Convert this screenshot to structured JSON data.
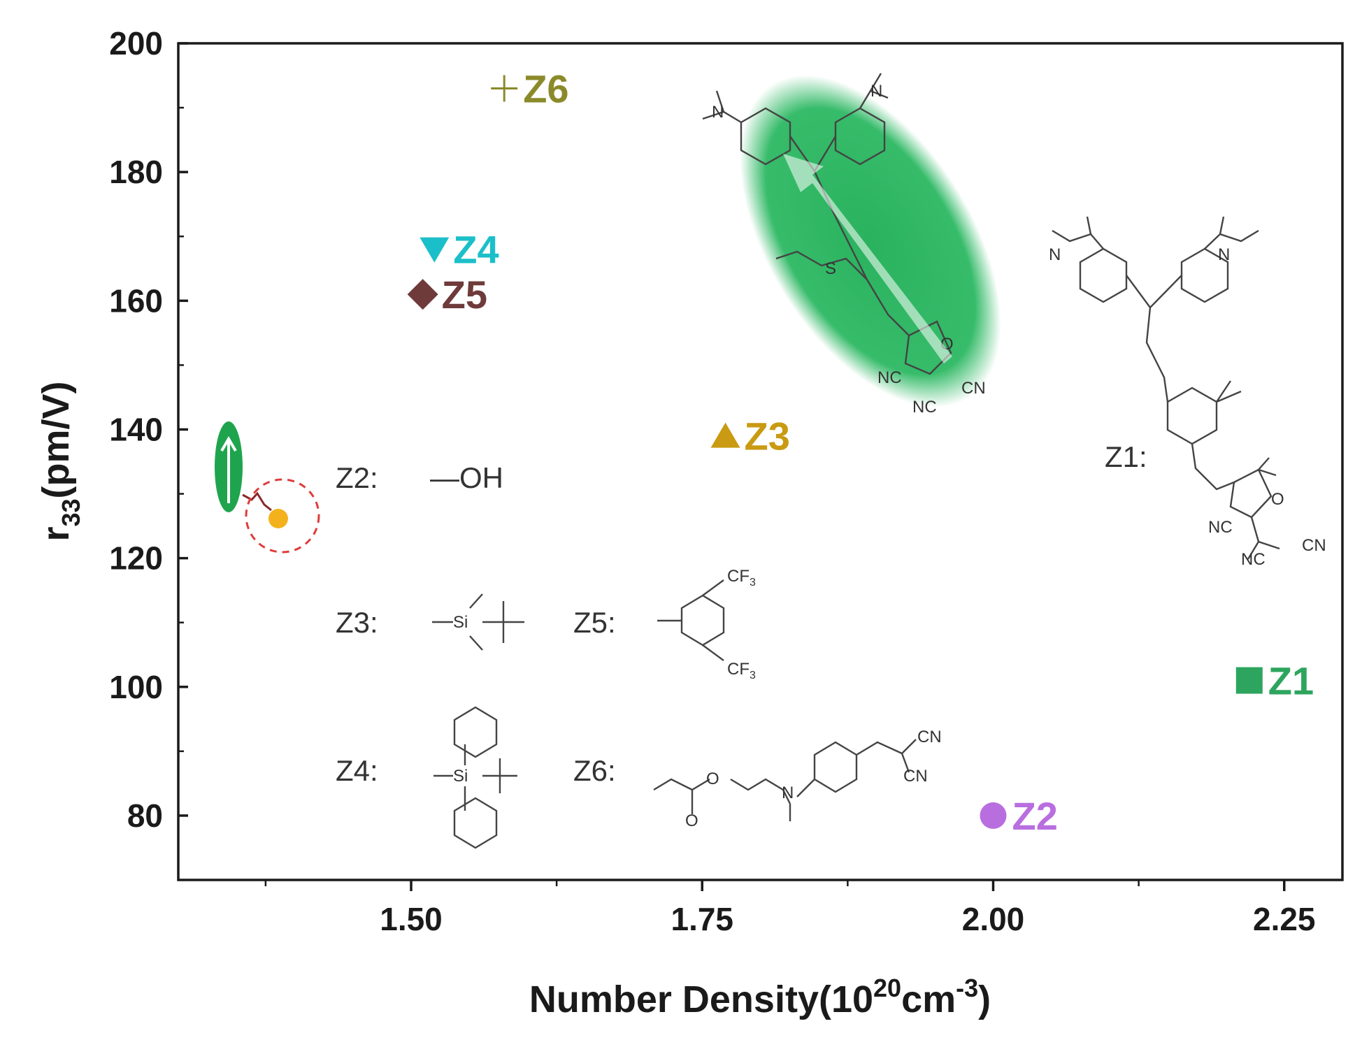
{
  "chart_data": {
    "type": "scatter",
    "xlabel": "Number Density(10",
    "xlabel_sup": "20",
    "xlabel_mid": "cm",
    "xlabel_sup2": "-3",
    "xlabel_end": ")",
    "ylabel": "r",
    "ylabel_sub": "33",
    "ylabel_end": "(pm/V)",
    "xlim": [
      1.3,
      2.3
    ],
    "ylim": [
      70,
      200
    ],
    "x_ticks": [
      "1.50",
      "1.75",
      "2.00",
      "2.25"
    ],
    "y_ticks": [
      "200",
      "180",
      "160",
      "140",
      "120",
      "100",
      "80"
    ],
    "points": [
      {
        "name": "Z1",
        "x": 2.22,
        "y": 101,
        "marker": "square",
        "color": "#2ea55e"
      },
      {
        "name": "Z2",
        "x": 2.0,
        "y": 80,
        "marker": "circle",
        "color": "#b96ee0"
      },
      {
        "name": "Z3",
        "x": 1.77,
        "y": 139,
        "marker": "triangle-up",
        "color": "#c99a12"
      },
      {
        "name": "Z4",
        "x": 1.52,
        "y": 168,
        "marker": "triangle-down",
        "color": "#1bbfc9"
      },
      {
        "name": "Z5",
        "x": 1.51,
        "y": 161,
        "marker": "diamond",
        "color": "#6e3a3a"
      },
      {
        "name": "Z6",
        "x": 1.58,
        "y": 193,
        "marker": "plus",
        "color": "#8a8a2a"
      }
    ]
  },
  "structure_labels": {
    "z1": "Z1:",
    "z2": "Z2:",
    "z2_group": "—OH",
    "z3": "Z3:",
    "z4": "Z4:",
    "z5": "Z5:",
    "z6": "Z6:"
  },
  "atoms": {
    "n": "N",
    "o": "O",
    "s": "S",
    "si": "Si",
    "nc": "NC",
    "cn": "CN",
    "cf3": "CF",
    "cf3_sub": "3"
  }
}
